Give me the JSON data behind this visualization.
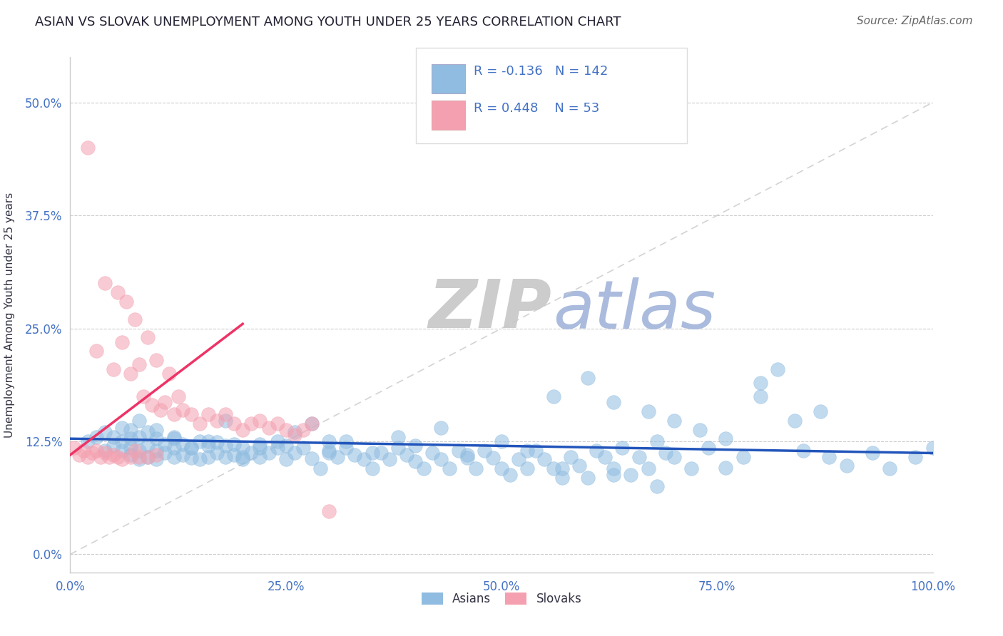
{
  "title": "ASIAN VS SLOVAK UNEMPLOYMENT AMONG YOUTH UNDER 25 YEARS CORRELATION CHART",
  "source": "Source: ZipAtlas.com",
  "ylabel": "Unemployment Among Youth under 25 years",
  "xlim": [
    0,
    1.0
  ],
  "ylim": [
    -0.02,
    0.55
  ],
  "yticks": [
    0.0,
    0.125,
    0.25,
    0.375,
    0.5
  ],
  "ytick_labels": [
    "0.0%",
    "12.5%",
    "25.0%",
    "37.5%",
    "50.0%"
  ],
  "xticks": [
    0.0,
    0.25,
    0.5,
    0.75,
    1.0
  ],
  "xtick_labels": [
    "0.0%",
    "25.0%",
    "50.0%",
    "75.0%",
    "100.0%"
  ],
  "blue_R": -0.136,
  "blue_N": 142,
  "pink_R": 0.448,
  "pink_N": 53,
  "blue_color": "#8fbce0",
  "pink_color": "#f4a0b0",
  "blue_line_color": "#2255bb",
  "pink_line_color": "#ee3366",
  "ref_line_color": "#c8c8c8",
  "title_color": "#222233",
  "axis_label_color": "#333344",
  "tick_color": "#4472c4",
  "legend_R_color": "#4472c4",
  "watermark_color_zip": "#cccccc",
  "watermark_color_atlas": "#aabbdd",
  "background_color": "#ffffff",
  "blue_scatter_x": [
    0.02,
    0.03,
    0.04,
    0.04,
    0.05,
    0.05,
    0.06,
    0.06,
    0.06,
    0.07,
    0.07,
    0.07,
    0.07,
    0.08,
    0.08,
    0.08,
    0.09,
    0.09,
    0.09,
    0.1,
    0.1,
    0.1,
    0.11,
    0.11,
    0.12,
    0.12,
    0.12,
    0.13,
    0.13,
    0.14,
    0.14,
    0.15,
    0.15,
    0.16,
    0.16,
    0.17,
    0.17,
    0.18,
    0.18,
    0.19,
    0.19,
    0.2,
    0.2,
    0.21,
    0.22,
    0.22,
    0.23,
    0.24,
    0.25,
    0.25,
    0.26,
    0.27,
    0.28,
    0.29,
    0.3,
    0.3,
    0.31,
    0.32,
    0.33,
    0.34,
    0.35,
    0.36,
    0.37,
    0.38,
    0.39,
    0.4,
    0.41,
    0.42,
    0.43,
    0.44,
    0.45,
    0.46,
    0.47,
    0.48,
    0.49,
    0.5,
    0.51,
    0.52,
    0.53,
    0.54,
    0.55,
    0.56,
    0.57,
    0.58,
    0.59,
    0.6,
    0.61,
    0.62,
    0.63,
    0.64,
    0.65,
    0.66,
    0.67,
    0.68,
    0.69,
    0.7,
    0.72,
    0.74,
    0.76,
    0.78,
    0.8,
    0.82,
    0.85,
    0.88,
    0.9,
    0.93,
    0.95,
    0.98,
    1.0,
    0.08,
    0.1,
    0.12,
    0.14,
    0.16,
    0.18,
    0.2,
    0.22,
    0.24,
    0.26,
    0.28,
    0.3,
    0.32,
    0.35,
    0.38,
    0.4,
    0.43,
    0.46,
    0.5,
    0.53,
    0.56,
    0.6,
    0.63,
    0.67,
    0.7,
    0.73,
    0.76,
    0.8,
    0.84,
    0.87,
    0.57,
    0.63,
    0.68
  ],
  "blue_scatter_y": [
    0.125,
    0.13,
    0.135,
    0.115,
    0.13,
    0.12,
    0.115,
    0.125,
    0.14,
    0.11,
    0.118,
    0.128,
    0.138,
    0.105,
    0.115,
    0.13,
    0.108,
    0.12,
    0.135,
    0.105,
    0.115,
    0.128,
    0.112,
    0.122,
    0.108,
    0.118,
    0.13,
    0.11,
    0.122,
    0.107,
    0.118,
    0.105,
    0.125,
    0.108,
    0.12,
    0.112,
    0.124,
    0.108,
    0.12,
    0.11,
    0.122,
    0.105,
    0.118,
    0.112,
    0.108,
    0.122,
    0.112,
    0.118,
    0.105,
    0.12,
    0.112,
    0.118,
    0.106,
    0.095,
    0.112,
    0.125,
    0.108,
    0.118,
    0.11,
    0.105,
    0.095,
    0.112,
    0.105,
    0.118,
    0.11,
    0.103,
    0.095,
    0.112,
    0.105,
    0.095,
    0.115,
    0.107,
    0.095,
    0.115,
    0.107,
    0.095,
    0.088,
    0.105,
    0.095,
    0.115,
    0.105,
    0.095,
    0.085,
    0.108,
    0.098,
    0.085,
    0.115,
    0.108,
    0.095,
    0.118,
    0.088,
    0.108,
    0.095,
    0.125,
    0.112,
    0.108,
    0.095,
    0.118,
    0.096,
    0.108,
    0.19,
    0.205,
    0.115,
    0.108,
    0.098,
    0.112,
    0.095,
    0.108,
    0.118,
    0.148,
    0.138,
    0.128,
    0.118,
    0.125,
    0.148,
    0.108,
    0.118,
    0.125,
    0.135,
    0.145,
    0.115,
    0.125,
    0.112,
    0.13,
    0.12,
    0.14,
    0.11,
    0.125,
    0.115,
    0.175,
    0.195,
    0.168,
    0.158,
    0.148,
    0.138,
    0.128,
    0.175,
    0.148,
    0.158,
    0.095,
    0.088,
    0.075
  ],
  "pink_scatter_x": [
    0.005,
    0.01,
    0.015,
    0.02,
    0.02,
    0.025,
    0.03,
    0.03,
    0.035,
    0.04,
    0.04,
    0.045,
    0.05,
    0.05,
    0.055,
    0.055,
    0.06,
    0.06,
    0.065,
    0.07,
    0.07,
    0.075,
    0.075,
    0.08,
    0.08,
    0.085,
    0.09,
    0.09,
    0.095,
    0.1,
    0.1,
    0.105,
    0.11,
    0.115,
    0.12,
    0.125,
    0.13,
    0.14,
    0.15,
    0.16,
    0.17,
    0.18,
    0.19,
    0.2,
    0.21,
    0.22,
    0.23,
    0.24,
    0.25,
    0.26,
    0.27,
    0.28,
    0.3
  ],
  "pink_scatter_y": [
    0.118,
    0.11,
    0.115,
    0.108,
    0.45,
    0.112,
    0.115,
    0.225,
    0.108,
    0.112,
    0.3,
    0.108,
    0.11,
    0.205,
    0.108,
    0.29,
    0.105,
    0.235,
    0.28,
    0.108,
    0.2,
    0.26,
    0.115,
    0.108,
    0.21,
    0.175,
    0.108,
    0.24,
    0.165,
    0.11,
    0.215,
    0.16,
    0.168,
    0.2,
    0.155,
    0.175,
    0.16,
    0.155,
    0.145,
    0.155,
    0.148,
    0.155,
    0.145,
    0.138,
    0.145,
    0.148,
    0.14,
    0.145,
    0.138,
    0.132,
    0.138,
    0.145,
    0.048
  ],
  "pink_line_x_start": 0.0,
  "pink_line_x_end": 0.2,
  "pink_line_y_start": 0.11,
  "pink_line_y_end": 0.255,
  "blue_line_x_start": 0.0,
  "blue_line_x_end": 1.0,
  "blue_line_y_start": 0.128,
  "blue_line_y_end": 0.112,
  "ref_line_x": [
    0.0,
    1.0
  ],
  "ref_line_y": [
    0.0,
    0.5
  ]
}
